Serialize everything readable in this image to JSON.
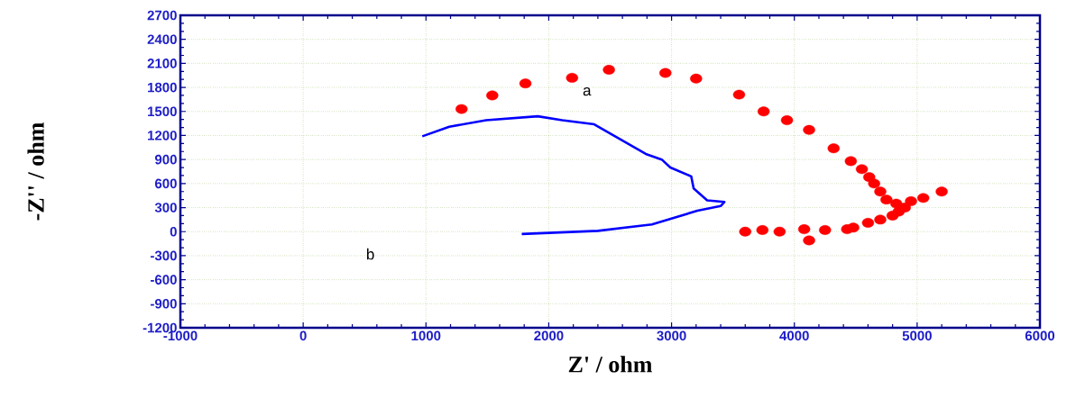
{
  "chart_data": {
    "type": "scatter",
    "xlabel": "Z' / ohm",
    "ylabel": "-Z'' / ohm",
    "xlim": [
      -1000,
      6000
    ],
    "ylim": [
      -1200,
      2700
    ],
    "xticks": [
      -1000,
      0,
      1000,
      2000,
      3000,
      4000,
      5000,
      6000
    ],
    "yticks": [
      -1200,
      -900,
      -600,
      -300,
      0,
      300,
      600,
      900,
      1200,
      1500,
      1800,
      2100,
      2400,
      2700
    ],
    "grid": true,
    "annotations": [
      "b"
    ],
    "series": [
      {
        "name": "a",
        "marker": "circle",
        "color": "#ff0000",
        "x": [
          1290,
          1540,
          1810,
          2190,
          2490,
          2950,
          3200,
          3550,
          3750,
          3940,
          4120,
          4320,
          4460,
          4550,
          4610,
          4650,
          4700,
          4750,
          4830,
          4950,
          5050,
          5200,
          4900,
          4850,
          4800,
          4700,
          4600,
          4480,
          4430,
          4250,
          4080,
          3880,
          3740,
          3600,
          4120
        ],
        "values": [
          1530,
          1700,
          1850,
          1920,
          2020,
          1980,
          1910,
          1710,
          1500,
          1390,
          1270,
          1040,
          880,
          780,
          680,
          600,
          500,
          400,
          350,
          380,
          420,
          500,
          300,
          250,
          200,
          150,
          110,
          50,
          30,
          20,
          30,
          0,
          20,
          0,
          -110
        ]
      },
      {
        "type": "line",
        "marker": "none",
        "color": "#0000ff",
        "x": [
          970,
          1190,
          1490,
          1910,
          2110,
          2370,
          2790,
          2920,
          2990,
          3160,
          3180,
          3290,
          3430,
          3400,
          3210,
          2840,
          2400,
          1780
        ],
        "values": [
          1190,
          1310,
          1390,
          1440,
          1390,
          1340,
          970,
          900,
          800,
          690,
          540,
          390,
          370,
          320,
          260,
          90,
          10,
          -30
        ]
      }
    ]
  }
}
